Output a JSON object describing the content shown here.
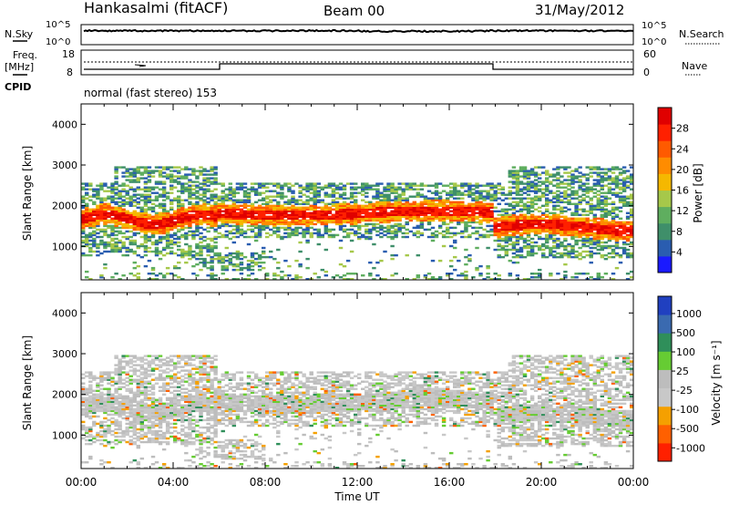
{
  "header": {
    "station": "Hankasalmi (fitACF)",
    "beam": "Beam 00",
    "date": "31/May/2012"
  },
  "top_panels": {
    "nsky_label": "N.Sky",
    "nsky_left_ticks": [
      "10^5",
      "10^0"
    ],
    "nsky_right_ticks": [
      "10^5",
      "10^0"
    ],
    "nsearch_label": "N.Search",
    "freq_label_1": "Freq.",
    "freq_label_2": "[MHz]",
    "freq_ticks": [
      "18",
      "8"
    ],
    "nave_ticks": [
      "60",
      "0"
    ],
    "nave_label": "Nave",
    "cpid_label": "CPID",
    "cpid_text": "normal (fast stereo) 153"
  },
  "chart_data": [
    {
      "type": "heatmap",
      "name": "power",
      "ylabel": "Slant Range [km]",
      "ylim": [
        180,
        4500
      ],
      "yticks": [
        1000,
        2000,
        3000,
        4000
      ],
      "xlim": [
        0,
        24
      ],
      "colorbar": {
        "label": "Power [dB]",
        "ticks": [
          "4",
          "8",
          "12",
          "16",
          "20",
          "24",
          "28"
        ],
        "colors": [
          "#1a1aff",
          "#2a5db0",
          "#3f8f6a",
          "#5fae5f",
          "#a6c84a",
          "#f5b800",
          "#ff8c00",
          "#ff5a00",
          "#ff2000",
          "#e00000"
        ]
      }
    },
    {
      "type": "heatmap",
      "name": "velocity",
      "ylabel": "Slant Range [km]",
      "ylim": [
        180,
        4500
      ],
      "yticks": [
        1000,
        2000,
        3000,
        4000
      ],
      "xlim": [
        0,
        24
      ],
      "colorbar": {
        "label": "Velocity [m s⁻¹]",
        "ticks": [
          "1000",
          "500",
          "100",
          "25",
          "-25",
          "-100",
          "-500",
          "-1000"
        ],
        "colors": [
          "#2040c0",
          "#3a6ab0",
          "#2f8f5a",
          "#66cc33",
          "#bdbdbd",
          "#c8c8c8",
          "#f5a000",
          "#ff6000",
          "#ff2000"
        ]
      }
    }
  ],
  "xaxis": {
    "label": "Time UT",
    "ticks": [
      "00:00",
      "04:00",
      "08:00",
      "12:00",
      "16:00",
      "20:00",
      "00:00"
    ]
  }
}
